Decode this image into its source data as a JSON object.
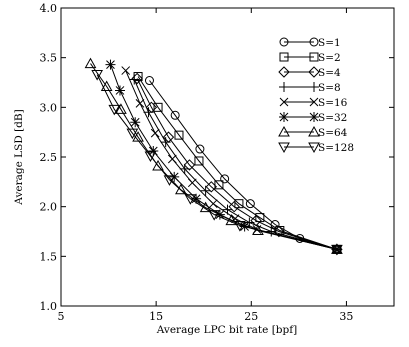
{
  "chart_data": {
    "type": "line",
    "title": "",
    "xlabel": "Average LPC bit rate [bpf]",
    "ylabel": "Average LSD [dB]",
    "xlim": [
      5,
      40
    ],
    "ylim": [
      1.0,
      4.0
    ],
    "x_ticks": [
      5,
      15,
      25,
      35
    ],
    "x_tick_labels": [
      "5",
      "15",
      "25",
      "35"
    ],
    "y_ticks": [
      1.0,
      1.5,
      2.0,
      2.5,
      3.0,
      3.5,
      4.0
    ],
    "y_tick_labels": [
      "1.0",
      "1.5",
      "2.0",
      "2.5",
      "3.0",
      "3.5",
      "4.0"
    ],
    "grid": false,
    "legend_position": "top-right",
    "series": [
      {
        "name": "S=1",
        "marker": "circle",
        "points": [
          [
            14.3,
            3.27
          ],
          [
            17.0,
            2.92
          ],
          [
            19.6,
            2.58
          ],
          [
            22.2,
            2.28
          ],
          [
            24.9,
            2.03
          ],
          [
            27.5,
            1.82
          ],
          [
            30.1,
            1.68
          ],
          [
            34.0,
            1.57
          ]
        ]
      },
      {
        "name": "S=2",
        "marker": "square",
        "points": [
          [
            13.1,
            3.31
          ],
          [
            15.2,
            3.0
          ],
          [
            17.4,
            2.72
          ],
          [
            19.5,
            2.46
          ],
          [
            21.6,
            2.22
          ],
          [
            23.7,
            2.03
          ],
          [
            25.9,
            1.89
          ],
          [
            28.0,
            1.76
          ],
          [
            34.0,
            1.57
          ]
        ]
      },
      {
        "name": "S=4",
        "marker": "diamond",
        "points": [
          [
            13.0,
            3.29
          ],
          [
            14.5,
            3.0
          ],
          [
            16.3,
            2.7
          ],
          [
            18.5,
            2.42
          ],
          [
            20.8,
            2.2
          ],
          [
            23.2,
            2.0
          ],
          [
            25.5,
            1.86
          ],
          [
            27.9,
            1.75
          ],
          [
            34.0,
            1.57
          ]
        ]
      },
      {
        "name": "S=8",
        "marker": "plus",
        "points": [
          [
            12.7,
            3.28
          ],
          [
            14.2,
            2.95
          ],
          [
            16.0,
            2.65
          ],
          [
            18.0,
            2.38
          ],
          [
            20.2,
            2.16
          ],
          [
            22.5,
            1.97
          ],
          [
            24.8,
            1.84
          ],
          [
            27.1,
            1.75
          ],
          [
            34.0,
            1.57
          ]
        ]
      },
      {
        "name": "S=16",
        "marker": "cross",
        "points": [
          [
            11.8,
            3.37
          ],
          [
            13.3,
            3.04
          ],
          [
            14.9,
            2.74
          ],
          [
            16.7,
            2.48
          ],
          [
            18.8,
            2.24
          ],
          [
            21.0,
            2.03
          ],
          [
            23.3,
            1.88
          ],
          [
            25.6,
            1.77
          ],
          [
            34.0,
            1.57
          ]
        ]
      },
      {
        "name": "S=32",
        "marker": "star",
        "points": [
          [
            10.2,
            3.43
          ],
          [
            11.2,
            3.17
          ],
          [
            12.8,
            2.85
          ],
          [
            14.7,
            2.56
          ],
          [
            16.9,
            2.3
          ],
          [
            19.2,
            2.08
          ],
          [
            21.7,
            1.92
          ],
          [
            24.3,
            1.8
          ],
          [
            34.0,
            1.57
          ]
        ]
      },
      {
        "name": "S=64",
        "marker": "triangle-up",
        "points": [
          [
            8.1,
            3.44
          ],
          [
            9.8,
            3.21
          ],
          [
            11.3,
            2.98
          ],
          [
            13.1,
            2.7
          ],
          [
            15.2,
            2.41
          ],
          [
            17.6,
            2.17
          ],
          [
            20.2,
            1.99
          ],
          [
            22.9,
            1.86
          ],
          [
            25.7,
            1.76
          ],
          [
            34.0,
            1.57
          ]
        ]
      },
      {
        "name": "S=128",
        "marker": "triangle-down",
        "points": [
          [
            8.8,
            3.33
          ],
          [
            10.6,
            2.98
          ],
          [
            12.5,
            2.74
          ],
          [
            14.4,
            2.51
          ],
          [
            16.4,
            2.27
          ],
          [
            18.6,
            2.08
          ],
          [
            21.1,
            1.92
          ],
          [
            23.8,
            1.81
          ],
          [
            34.0,
            1.57
          ]
        ]
      }
    ]
  }
}
